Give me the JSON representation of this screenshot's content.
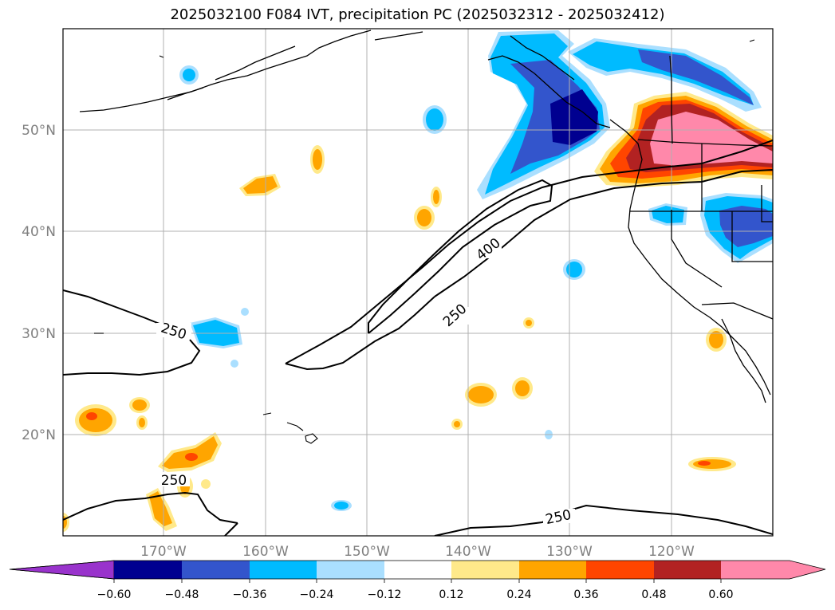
{
  "title": "2025032100 F084 IVT, precipitation PC (2025032312 - 2025032412)",
  "lat_ticks": [
    {
      "lat": 50,
      "label": "50°N"
    },
    {
      "lat": 40,
      "label": "40°N"
    },
    {
      "lat": 30,
      "label": "30°N"
    },
    {
      "lat": 20,
      "label": "20°N"
    }
  ],
  "lon_ticks": [
    {
      "lon": -170,
      "label": "170°W"
    },
    {
      "lon": -160,
      "label": "160°W"
    },
    {
      "lon": -150,
      "label": "150°W"
    },
    {
      "lon": -140,
      "label": "140°W"
    },
    {
      "lon": -130,
      "label": "130°W"
    },
    {
      "lon": -120,
      "label": "120°W"
    }
  ],
  "ivt_contour_labels": [
    {
      "text": "250"
    },
    {
      "text": "250"
    },
    {
      "text": "400"
    },
    {
      "text": "250"
    },
    {
      "text": "250"
    }
  ],
  "colorbar": {
    "colors": [
      "#9933cc",
      "#000090",
      "#3355cc",
      "#00bbff",
      "#aadfff",
      "#ffffff",
      "#ffe98a",
      "#ffa500",
      "#ff4500",
      "#b22222",
      "#ff88aa",
      "#ff88aa"
    ],
    "tick_labels": [
      "−0.60",
      "−0.48",
      "−0.36",
      "−0.24",
      "−0.12",
      "0.12",
      "0.24",
      "0.36",
      "0.48",
      "0.60"
    ]
  }
}
